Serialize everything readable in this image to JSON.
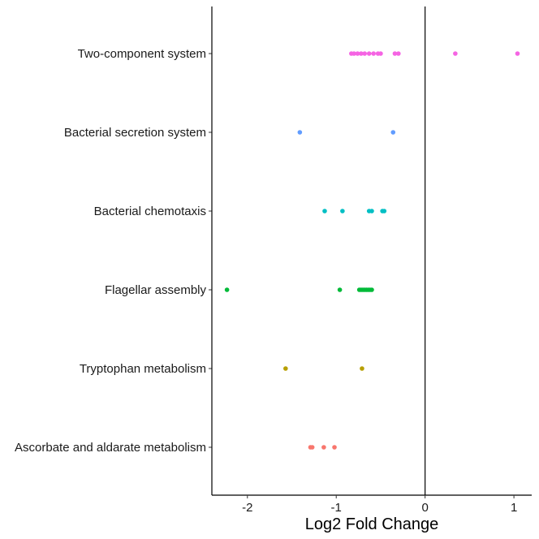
{
  "chart_data": {
    "type": "scatter",
    "title": "",
    "xlabel": "Log2 Fold Change",
    "ylabel": "",
    "xlim": [
      -2.4,
      1.2
    ],
    "xticks": [
      -2,
      -1,
      0,
      1
    ],
    "xtick_labels": [
      "-2",
      "-1",
      "0",
      "1"
    ],
    "vline_at": 0,
    "grid": false,
    "legend": "none",
    "categories": [
      "Ascorbate and aldarate metabolism",
      "Tryptophan metabolism",
      "Flagellar assembly",
      "Bacterial chemotaxis",
      "Bacterial secretion system",
      "Two-component system"
    ],
    "series": [
      {
        "category": "Ascorbate and aldarate metabolism",
        "color": "#F8766D",
        "x": [
          -1.29,
          -1.27,
          -1.14,
          -1.02
        ]
      },
      {
        "category": "Tryptophan metabolism",
        "color": "#B79F00",
        "x": [
          -1.57,
          -0.71
        ]
      },
      {
        "category": "Flagellar assembly",
        "color": "#00BA38",
        "x": [
          -2.23,
          -0.96,
          -0.74,
          -0.72,
          -0.7,
          -0.68,
          -0.66,
          -0.64,
          -0.62,
          -0.6
        ]
      },
      {
        "category": "Bacterial chemotaxis",
        "color": "#00BFC4",
        "x": [
          -1.13,
          -0.93,
          -0.63,
          -0.6,
          -0.48,
          -0.46
        ]
      },
      {
        "category": "Bacterial secretion system",
        "color": "#619CFF",
        "x": [
          -1.41,
          -0.36
        ]
      },
      {
        "category": "Two-component system",
        "color": "#F564E3",
        "x": [
          -0.83,
          -0.8,
          -0.76,
          -0.72,
          -0.68,
          -0.63,
          -0.58,
          -0.53,
          -0.5,
          -0.34,
          -0.3,
          0.34,
          1.04
        ]
      }
    ]
  }
}
